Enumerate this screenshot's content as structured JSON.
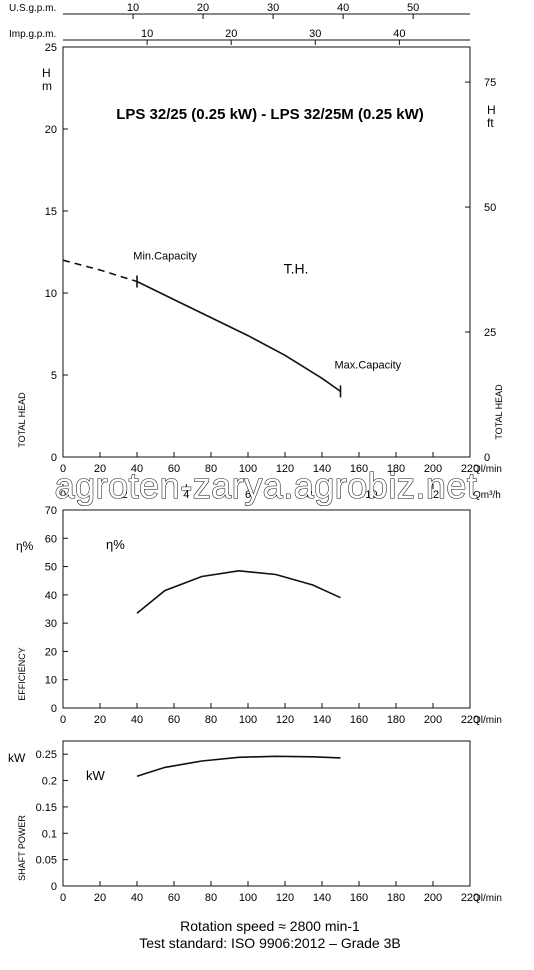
{
  "title": "LPS 32/25 (0.25 kW) - LPS 32/25M (0.25 kW)",
  "watermark": "agroten-zarya.agrobiz.net",
  "footer": {
    "line1": "Rotation speed ≈ 2800 min-1",
    "line2": "Test standard: ISO 9906:2012 – Grade 3B"
  },
  "top_scales": {
    "us_label": "U.S.g.p.m.",
    "us_ticks": [
      "10",
      "20",
      "30",
      "40",
      "50"
    ],
    "imp_label": "Imp.g.p.m.",
    "imp_ticks": [
      "10",
      "20",
      "30",
      "40"
    ]
  },
  "chart_data": [
    {
      "type": "line",
      "name": "head",
      "ylabel_unit": "H\nm",
      "ylabel_unit_right": "H\nft",
      "ylabel": "TOTAL HEAD",
      "ylabel_right": "TOTAL HEAD",
      "xlabel": "Ql/min",
      "xlabel2": "Qm³/h",
      "xlim": [
        0,
        220
      ],
      "ylim": [
        0,
        25
      ],
      "x_ticks": [
        "0",
        "20",
        "40",
        "60",
        "80",
        "100",
        "120",
        "140",
        "160",
        "180",
        "200",
        "220"
      ],
      "x2_ticks": [
        "0",
        "2",
        "4",
        "6",
        "8",
        "10",
        "12"
      ],
      "y_ticks": [
        "0",
        "5",
        "10",
        "15",
        "20",
        "25"
      ],
      "y_right_ticks": [
        "0",
        "25",
        "50",
        "75"
      ],
      "curve_label": "T.H.",
      "min_label": "Min.Capacity",
      "max_label": "Max.Capacity",
      "dashed": {
        "x": [
          0,
          10,
          20,
          30,
          40
        ],
        "y": [
          12.0,
          11.7,
          11.4,
          11.05,
          10.7
        ]
      },
      "series": [
        {
          "x": [
            40,
            60,
            80,
            100,
            120,
            140,
            150
          ],
          "y": [
            10.7,
            9.6,
            8.5,
            7.4,
            6.2,
            4.8,
            4.0
          ]
        }
      ],
      "markers": [
        {
          "x": 40,
          "y": 10.7
        },
        {
          "x": 150,
          "y": 4.0
        }
      ]
    },
    {
      "type": "line",
      "name": "efficiency",
      "ylabel_unit": "η%",
      "series_label": "η%",
      "ylabel": "EFFICIENCY",
      "xlabel": "Ql/min",
      "xlim": [
        0,
        220
      ],
      "ylim": [
        0,
        70
      ],
      "x_ticks": [
        "0",
        "20",
        "40",
        "60",
        "80",
        "100",
        "120",
        "140",
        "160",
        "180",
        "200",
        "220"
      ],
      "y_ticks": [
        "0",
        "10",
        "20",
        "30",
        "40",
        "50",
        "60",
        "70"
      ],
      "series": [
        {
          "x": [
            40,
            55,
            75,
            95,
            115,
            135,
            150
          ],
          "y": [
            33.5,
            41.5,
            46.5,
            48.5,
            47.2,
            43.5,
            39
          ]
        }
      ]
    },
    {
      "type": "line",
      "name": "power",
      "ylabel_unit": "kW",
      "series_label": "kW",
      "ylabel": "SHAFT POWER",
      "xlabel": "Ql/min",
      "xlim": [
        0,
        220
      ],
      "ylim": [
        0,
        0.275
      ],
      "x_ticks": [
        "0",
        "20",
        "40",
        "60",
        "80",
        "100",
        "120",
        "140",
        "160",
        "180",
        "200",
        "220"
      ],
      "y_ticks": [
        "0",
        "0.05",
        "0.1",
        "0.15",
        "0.2",
        "0.25"
      ],
      "y_tick_values": [
        0,
        0.05,
        0.1,
        0.15,
        0.2,
        0.25
      ],
      "series": [
        {
          "x": [
            40,
            55,
            75,
            95,
            115,
            135,
            150
          ],
          "y": [
            0.208,
            0.225,
            0.237,
            0.244,
            0.246,
            0.245,
            0.243
          ]
        }
      ]
    }
  ]
}
